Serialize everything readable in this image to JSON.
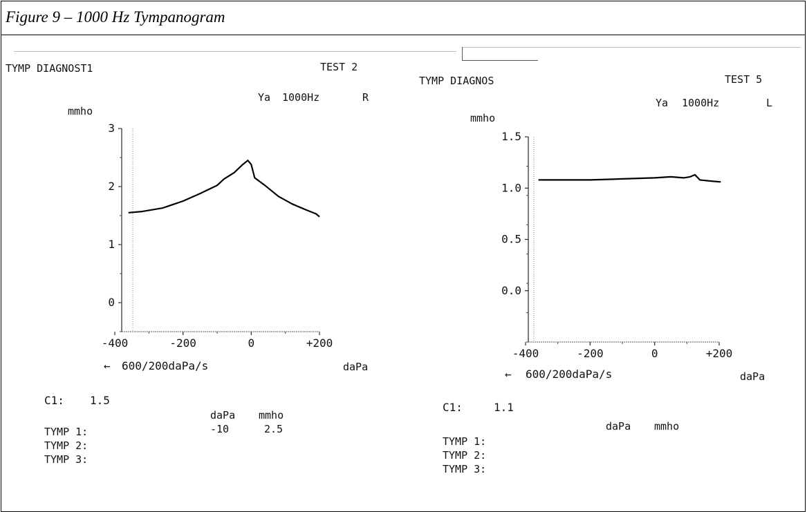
{
  "figure": {
    "caption": "Figure 9 – 1000 Hz Tympanogram"
  },
  "left": {
    "header": "TYMP DIAGNOST1",
    "test": "TEST 2",
    "probe": "Ya",
    "freq": "1000Hz",
    "ear": "R",
    "unit": "mmho",
    "sweep": "600/200daPa/s",
    "xunit": "daPa",
    "c1_label": "C1:",
    "c1_value": "1.5",
    "col_dapa": "daPa",
    "col_mmho": "mmho",
    "tymp1": "TYMP 1:",
    "tymp1_dapa": "-10",
    "tymp1_mmho": "2.5",
    "tymp2": "TYMP 2:",
    "tymp3": "TYMP 3:"
  },
  "right": {
    "header": "TYMP DIAGNOS",
    "test": "TEST 5",
    "probe": "Ya",
    "freq": "1000Hz",
    "ear": "L",
    "unit": "mmho",
    "sweep": "600/200daPa/s",
    "xunit": "daPa",
    "c1_label": "C1:",
    "c1_value": "1.1",
    "col_dapa": "daPa",
    "col_mmho": "mmho",
    "tymp1": "TYMP 1:",
    "tymp2": "TYMP 2:",
    "tymp3": "TYMP 3:"
  },
  "chart_data": [
    {
      "type": "line",
      "xlabel": "daPa",
      "ylabel": "mmho",
      "xlim": [
        -400,
        200
      ],
      "ylim": [
        -0.5,
        3
      ],
      "xticks": [
        -400,
        -200,
        0,
        200
      ],
      "xtick_labels": [
        "-400",
        "-200",
        "0",
        "+200"
      ],
      "yticks": [
        3,
        2,
        1,
        0
      ],
      "ytick_labels": [
        "3",
        "2",
        "1",
        "0"
      ],
      "series": [
        {
          "x": [
            -360,
            -320,
            -260,
            -200,
            -150,
            -100,
            -80,
            -50,
            -25,
            -10,
            0,
            10,
            40,
            80,
            120,
            160,
            190,
            200
          ],
          "y": [
            1.55,
            1.57,
            1.63,
            1.75,
            1.88,
            2.02,
            2.13,
            2.24,
            2.38,
            2.45,
            2.38,
            2.15,
            2.02,
            1.83,
            1.7,
            1.6,
            1.53,
            1.48
          ]
        }
      ]
    },
    {
      "type": "line",
      "xlabel": "daPa",
      "ylabel": "mmho",
      "xlim": [
        -400,
        200
      ],
      "ylim": [
        -0.5,
        1.5
      ],
      "xticks": [
        -400,
        -200,
        0,
        200
      ],
      "xtick_labels": [
        "-400",
        "-200",
        "0",
        "+200"
      ],
      "yticks": [
        1.5,
        1.0,
        0.5,
        0.0
      ],
      "ytick_labels": [
        "1.5",
        "1.0",
        "0.5",
        "0.0"
      ],
      "series": [
        {
          "x": [
            -360,
            -300,
            -200,
            -100,
            0,
            50,
            90,
            110,
            125,
            140,
            170,
            205
          ],
          "y": [
            1.08,
            1.08,
            1.08,
            1.09,
            1.1,
            1.11,
            1.1,
            1.11,
            1.13,
            1.08,
            1.07,
            1.06
          ]
        }
      ]
    }
  ]
}
